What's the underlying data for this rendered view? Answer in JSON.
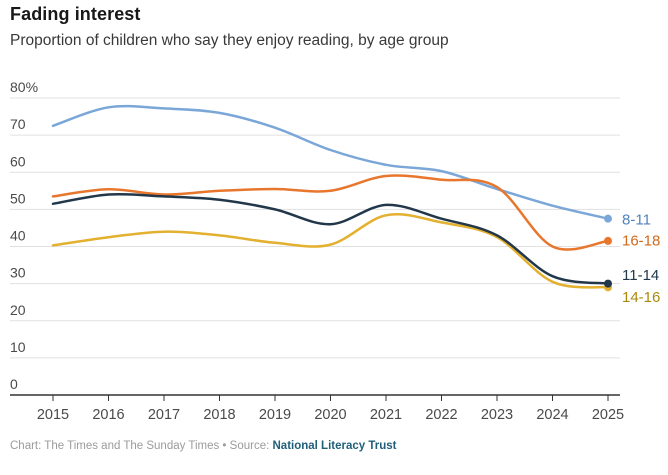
{
  "header": {
    "title": "Fading interest",
    "subtitle": "Proportion of children who say they enjoy reading, by age group"
  },
  "footer": {
    "prefix": "Chart: The Times and The Sunday Times • Source:",
    "source": "National Literacy Trust"
  },
  "chart_data": {
    "type": "line",
    "title": "Fading interest",
    "xlabel": "",
    "ylabel": "",
    "x": [
      2015,
      2016,
      2017,
      2018,
      2019,
      2020,
      2021,
      2022,
      2023,
      2024,
      2025
    ],
    "series": [
      {
        "name": "8-11",
        "color": "#7aa6d8",
        "label_color": "#5282bc",
        "values": [
          72.5,
          77.5,
          77.2,
          76.0,
          72.0,
          66.0,
          62.0,
          60.3,
          55.5,
          51.0,
          47.5
        ]
      },
      {
        "name": "16-18",
        "color": "#e8762d",
        "label_color": "#d2691b",
        "values": [
          53.5,
          55.4,
          54.0,
          55.0,
          55.5,
          55.0,
          59.0,
          58.0,
          56.0,
          40.0,
          41.5
        ]
      },
      {
        "name": "14-16",
        "color": "#e3b02f",
        "label_color": "#a98a0e",
        "values": [
          40.3,
          42.5,
          44.0,
          43.0,
          41.0,
          40.5,
          48.4,
          46.5,
          42.5,
          30.5,
          29.0
        ]
      },
      {
        "name": "11-14",
        "color": "#22384a",
        "label_color": "#22384a",
        "values": [
          51.5,
          54.0,
          53.5,
          52.6,
          50.0,
          46.0,
          51.2,
          47.5,
          43.0,
          32.0,
          30.0
        ]
      }
    ],
    "ylim": [
      0,
      80
    ],
    "y_ticks": [
      {
        "value": 80,
        "label": "80%"
      },
      {
        "value": 70,
        "label": "70"
      },
      {
        "value": 60,
        "label": "60"
      },
      {
        "value": 50,
        "label": "50"
      },
      {
        "value": 40,
        "label": "40"
      },
      {
        "value": 30,
        "label": "30"
      },
      {
        "value": 20,
        "label": "20"
      },
      {
        "value": 10,
        "label": "10"
      },
      {
        "value": 0,
        "label": "0"
      }
    ],
    "grid": true,
    "legend_position": "right-end-labels"
  }
}
